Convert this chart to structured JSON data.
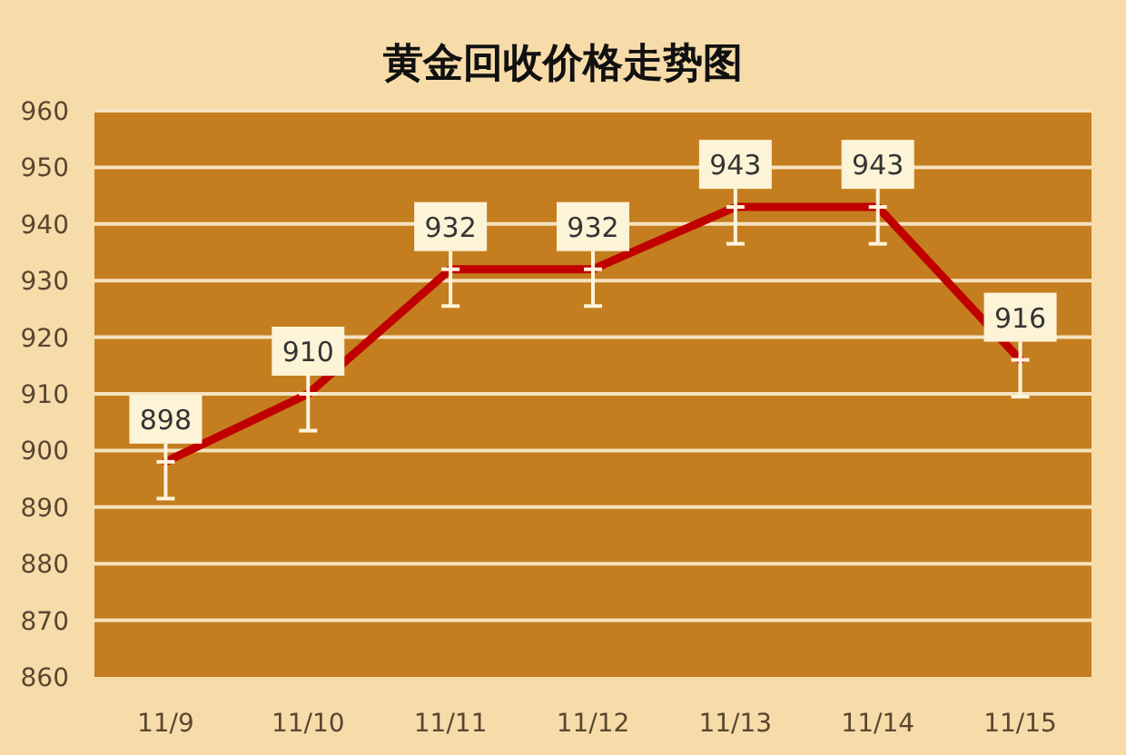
{
  "chart_data": {
    "type": "line",
    "title": "黄金回收价格走势图",
    "categories": [
      "11/9",
      "11/10",
      "11/11",
      "11/12",
      "11/13",
      "11/14",
      "11/15"
    ],
    "values": [
      898,
      910,
      932,
      932,
      943,
      943,
      916
    ],
    "color": "#c00000",
    "errors": [
      [
        891.5,
        898
      ],
      [
        903.5,
        910
      ],
      [
        925.5,
        932
      ],
      [
        925.5,
        932
      ],
      [
        936.5,
        943
      ],
      [
        936.5,
        943
      ],
      [
        909.5,
        916
      ]
    ],
    "data_labels": true,
    "ylim": [
      860,
      960
    ],
    "yticks": [
      860,
      870,
      880,
      890,
      900,
      910,
      920,
      930,
      940,
      950,
      960
    ],
    "grid": "y",
    "marker": "none",
    "line_style": "solid"
  }
}
